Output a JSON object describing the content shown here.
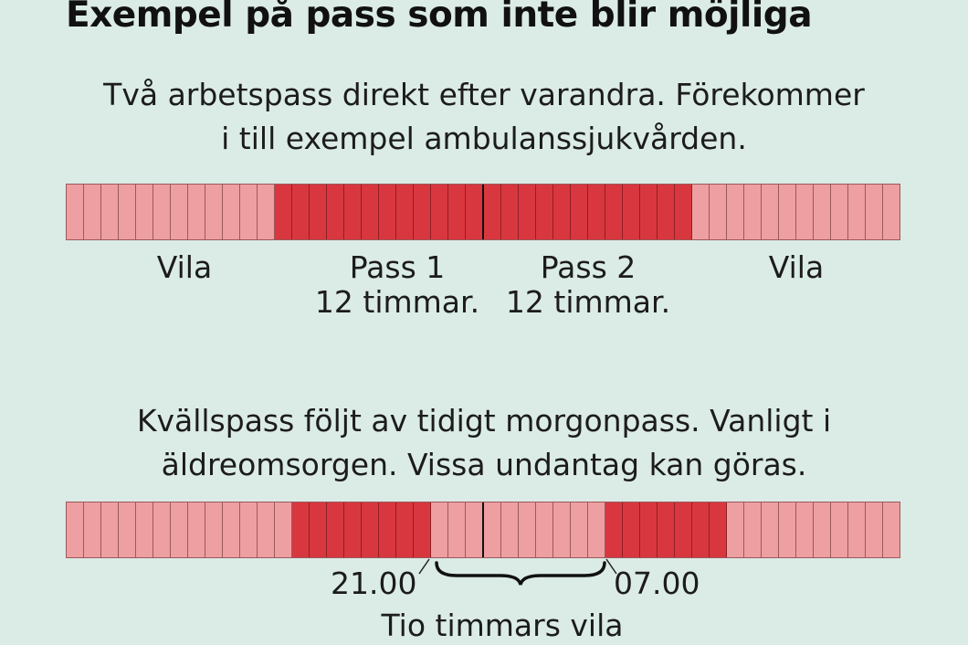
{
  "title": "Exempel på pass som inte blir möjliga",
  "example1": {
    "description_lines": [
      "Två arbetspass direkt efter varandra. Förekommer",
      "i till exempel ambulanssjukvården."
    ],
    "segments": [
      {
        "type": "rest",
        "hours": 12
      },
      {
        "type": "work",
        "hours": 12
      },
      {
        "type": "work",
        "hours": 12
      },
      {
        "type": "rest",
        "hours": 12
      }
    ],
    "labels": {
      "rest_left": "Vila",
      "pass1_name": "Pass 1",
      "pass1_hours": "12 timmar.",
      "pass2_name": "Pass 2",
      "pass2_hours": "12 timmar.",
      "rest_right": "Vila"
    },
    "colors": {
      "rest": "#ee9fa2",
      "work": "#d9373f"
    }
  },
  "example2": {
    "description_lines": [
      "Kvällspass följt av tidigt morgonpass. Vanligt i",
      "äldreomsorgen. Vissa undantag kan göras."
    ],
    "segments": [
      {
        "type": "rest",
        "hours": 13
      },
      {
        "type": "work",
        "hours": 8
      },
      {
        "type": "rest",
        "hours": 10
      },
      {
        "type": "work",
        "hours": 7
      },
      {
        "type": "rest",
        "hours": 10
      }
    ],
    "labels": {
      "evening_end": "21.00",
      "morning_start": "07.00",
      "rest_span": "Tio timmars vila"
    },
    "colors": {
      "rest": "#ee9fa2",
      "work": "#d9373f"
    }
  }
}
